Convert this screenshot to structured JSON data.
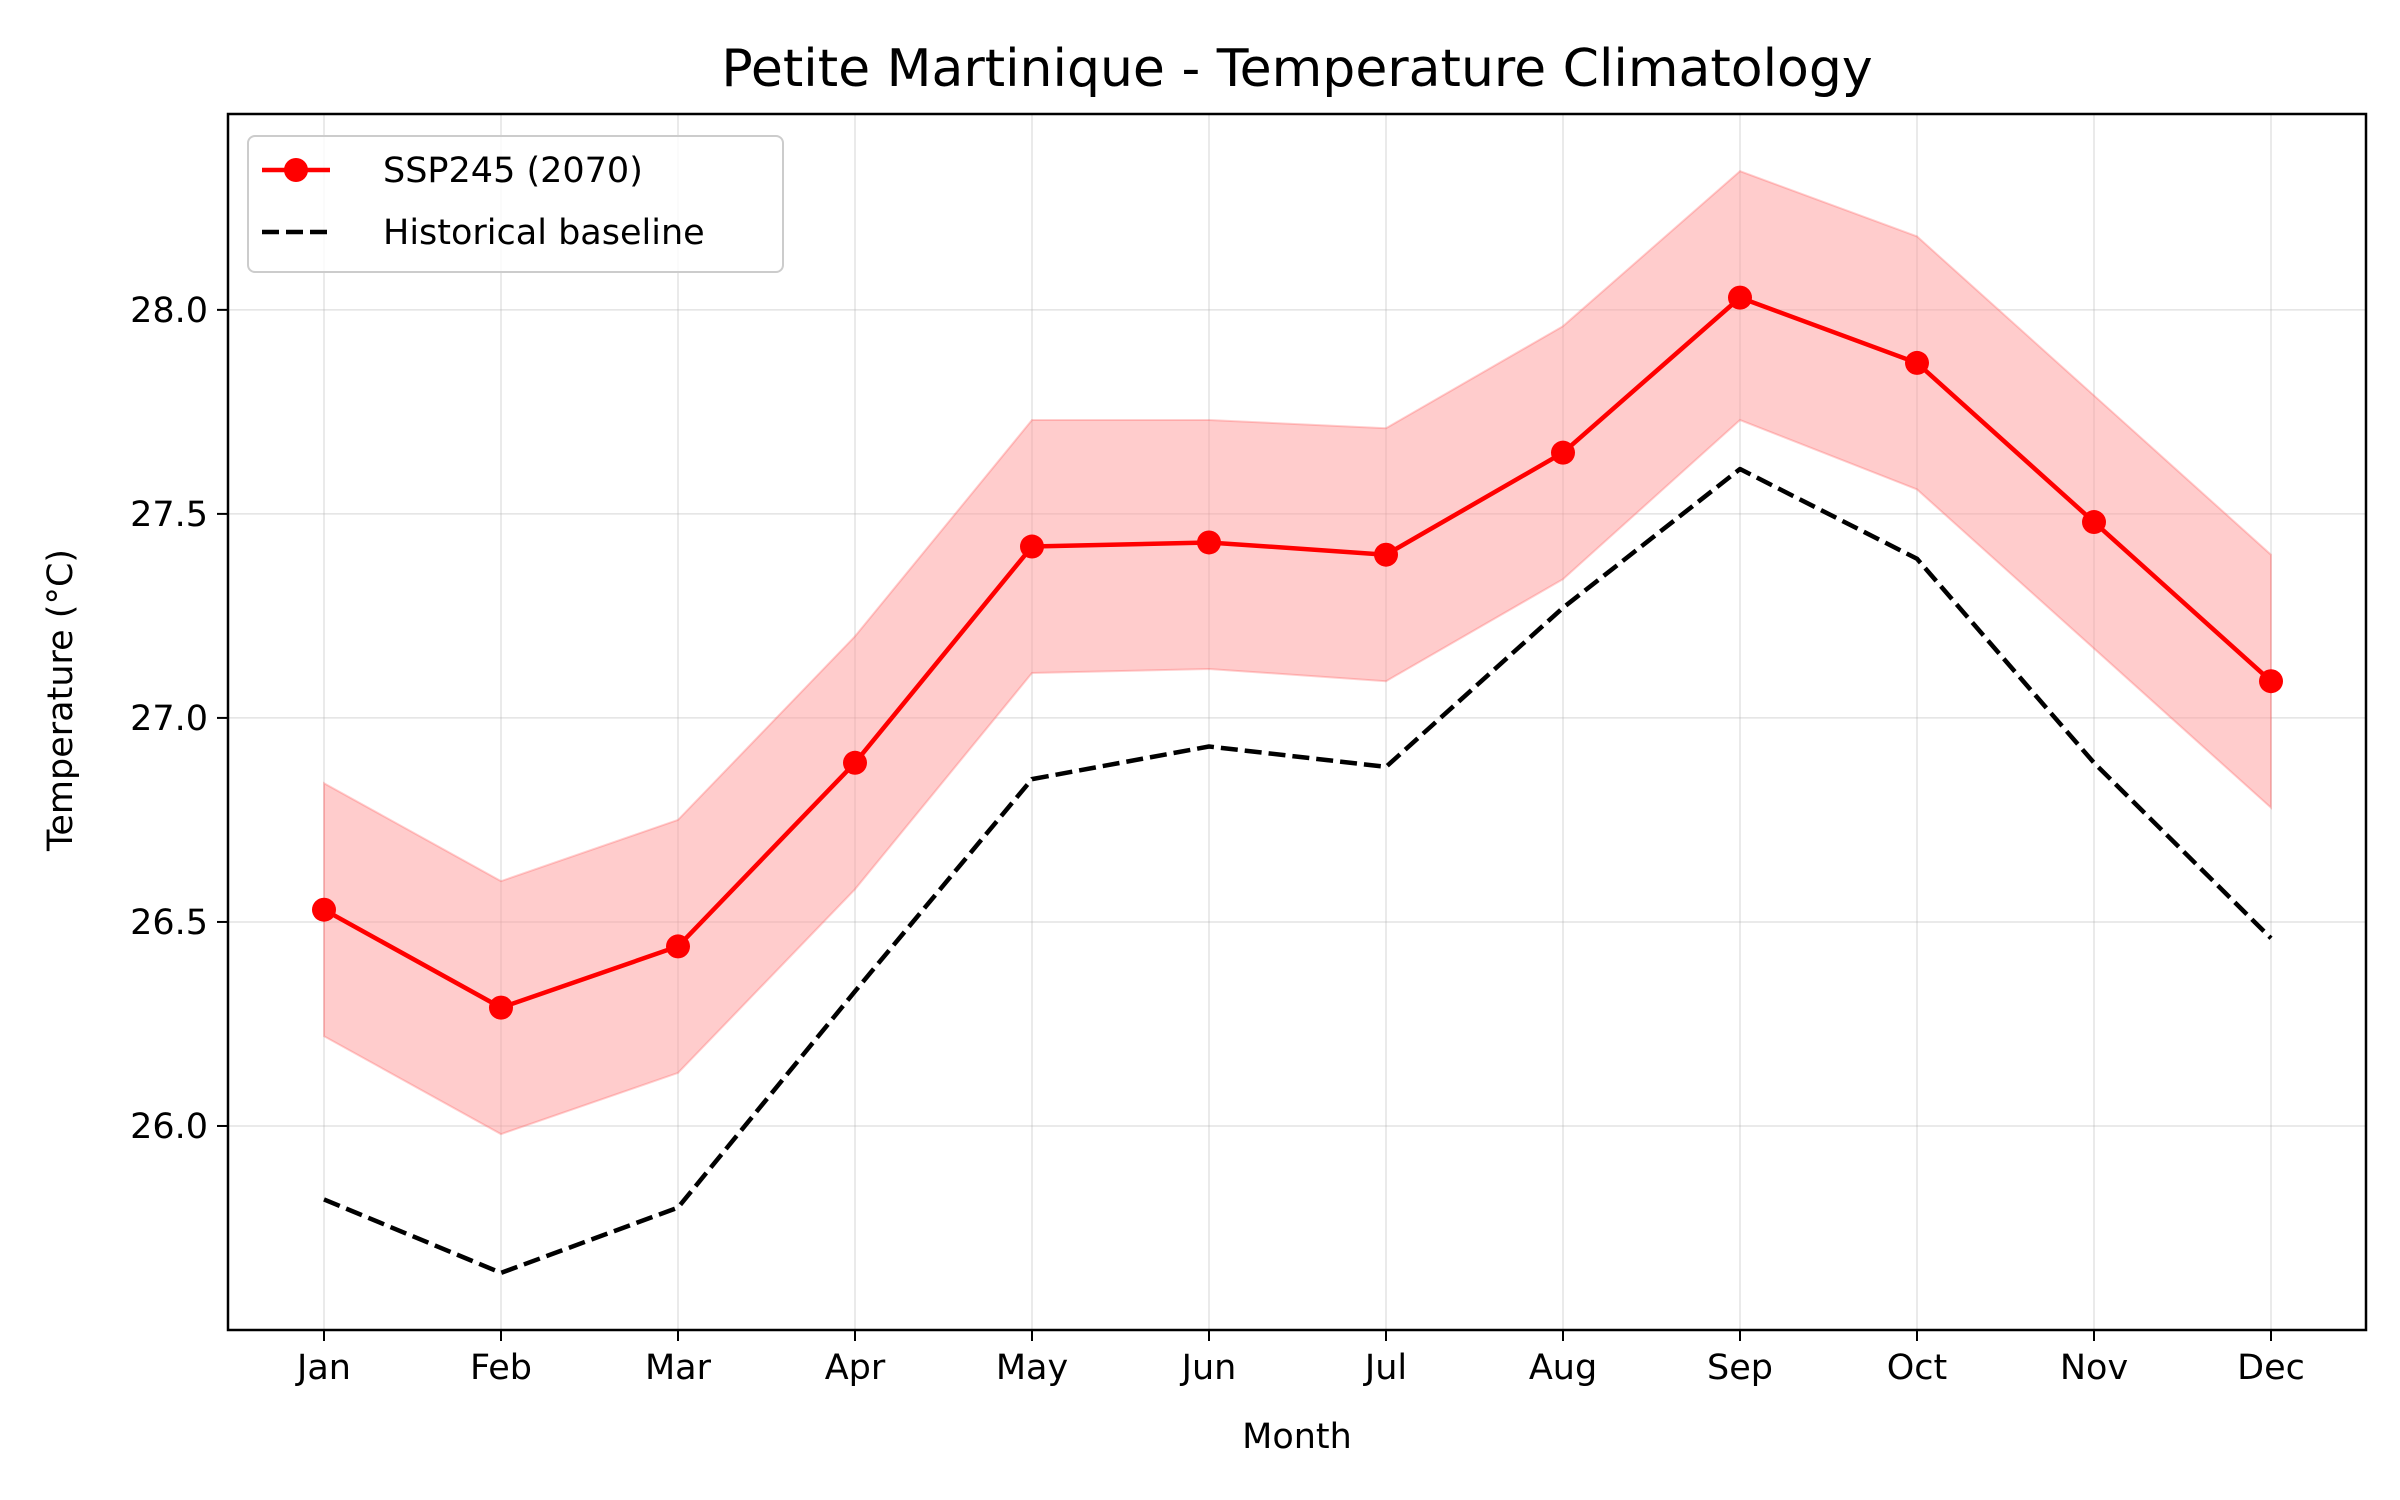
{
  "chart_data": {
    "type": "line",
    "title": "Petite Martinique - Temperature Climatology",
    "xlabel": "Month",
    "ylabel": "Temperature (°C)",
    "categories": [
      "Jan",
      "Feb",
      "Mar",
      "Apr",
      "May",
      "Jun",
      "Jul",
      "Aug",
      "Sep",
      "Oct",
      "Nov",
      "Dec"
    ],
    "ylim": [
      25.5,
      28.48
    ],
    "yticks": [
      "26.0",
      "26.5",
      "27.0",
      "27.5",
      "28.0"
    ],
    "grid": true,
    "legend_position": "top-left",
    "series": [
      {
        "name": "SSP245 (2070)",
        "style": "solid line with circle markers",
        "color": "#ff0000",
        "values": [
          26.53,
          26.29,
          26.44,
          26.89,
          27.42,
          27.43,
          27.4,
          27.65,
          28.03,
          27.87,
          27.48,
          27.09
        ],
        "band": {
          "color": "#ff9a9a",
          "upper": [
            26.84,
            26.6,
            26.75,
            27.2,
            27.73,
            27.73,
            27.71,
            27.96,
            28.34,
            28.18,
            27.79,
            27.4
          ],
          "lower": [
            26.22,
            25.98,
            26.13,
            26.58,
            27.11,
            27.12,
            27.09,
            27.34,
            27.73,
            27.56,
            27.17,
            26.78
          ]
        }
      },
      {
        "name": "Historical baseline",
        "style": "dashed line",
        "color": "#000000",
        "values": [
          25.82,
          25.64,
          25.8,
          26.33,
          26.85,
          26.93,
          26.88,
          27.27,
          27.61,
          27.39,
          26.89,
          26.46
        ]
      }
    ]
  }
}
